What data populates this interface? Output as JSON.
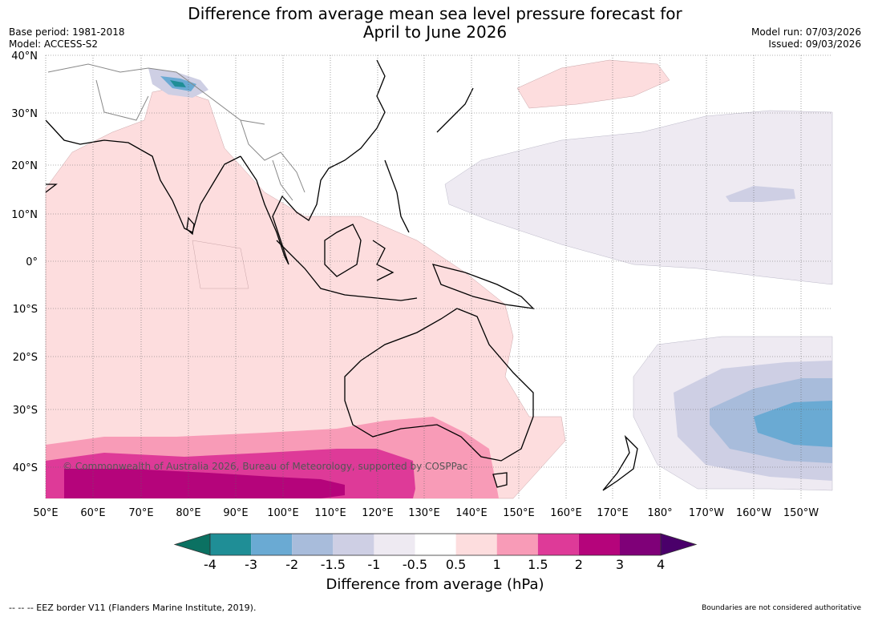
{
  "title": {
    "line1": "Difference from average mean sea level pressure forecast for",
    "line2": "April to June 2026"
  },
  "meta": {
    "base_period": "Base period: 1981-2018",
    "model": "Model: ACCESS-S2",
    "model_run": "Model run: 07/03/2026",
    "issued": "Issued: 09/03/2026"
  },
  "map": {
    "lat_labels": [
      "40°N",
      "30°N",
      "20°N",
      "10°N",
      "0°",
      "10°S",
      "20°S",
      "30°S",
      "40°S"
    ],
    "lon_labels": [
      "50°E",
      "60°E",
      "70°E",
      "80°E",
      "90°E",
      "100°E",
      "110°E",
      "120°E",
      "130°E",
      "140°E",
      "150°E",
      "160°E",
      "170°E",
      "180°",
      "170°W",
      "160°W",
      "150°W"
    ],
    "copyright": "© Commonwealth of Australia 2026, Bureau of Meteorology, supported by COSPPac"
  },
  "colorbar": {
    "ticks": [
      "-4",
      "-3",
      "-2",
      "-1.5",
      "-1",
      "-0.5",
      "0.5",
      "1",
      "1.5",
      "2",
      "3",
      "4"
    ],
    "colors": [
      "#1f8e96",
      "#6aaad3",
      "#a8bcdb",
      "#cecfe4",
      "#eeeaf2",
      "#ffffff",
      "#fdddde",
      "#f89bb7",
      "#de3a98",
      "#b5047b",
      "#7f0078"
    ],
    "low_color": "#0b7162",
    "high_color": "#4a006a",
    "title": "Difference from average (hPa)"
  },
  "footer": {
    "eez": "-- -- -- EEZ border V11 (Flanders Marine Institute, 2019).",
    "note": "Boundaries are not considered authoritative"
  }
}
